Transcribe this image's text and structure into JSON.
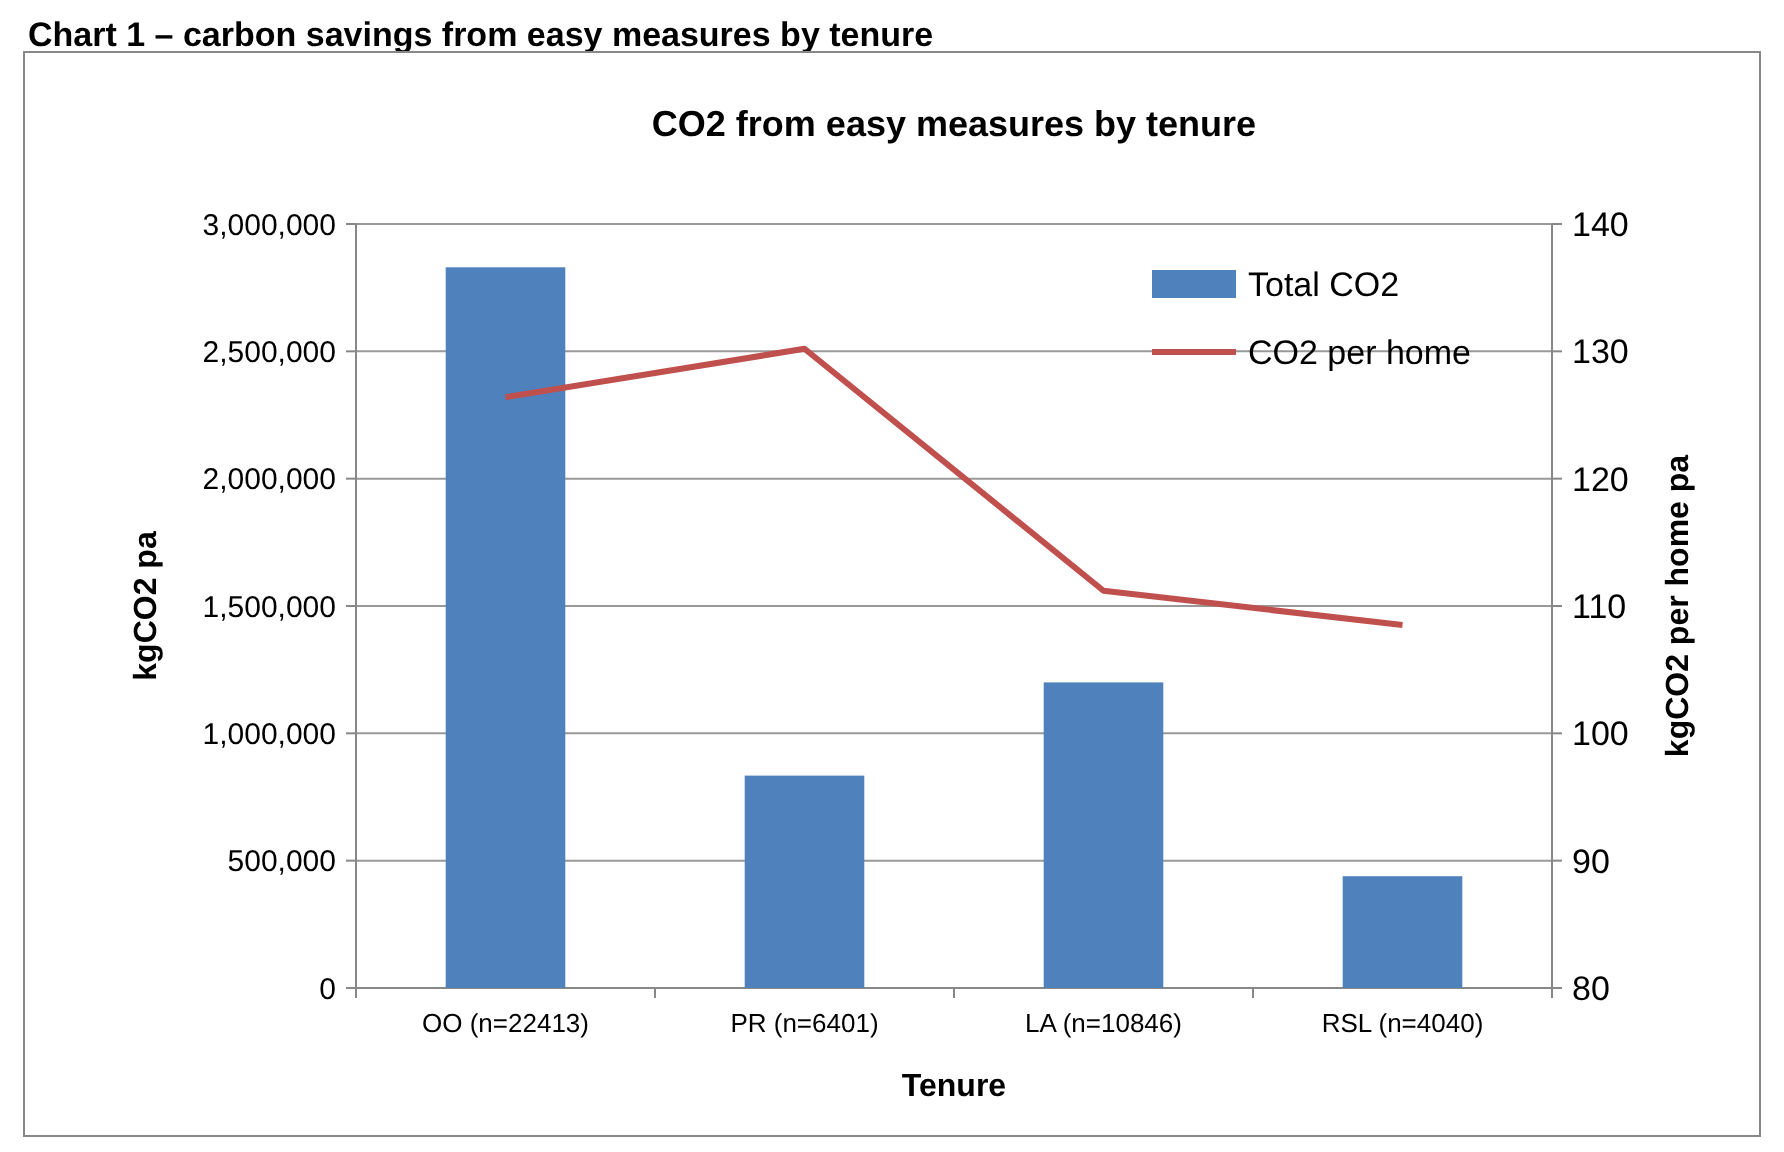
{
  "chart_data": {
    "type": "bar",
    "title": "CO2 from easy measures by tenure",
    "xlabel": "Tenure",
    "ylabel": "kgCO2 pa",
    "y2label": "kgCO2 per home pa",
    "annotations": [
      "Chart 1 – carbon savings from easy measures by tenure"
    ],
    "categories": [
      "OO (n=22413)",
      "PR (n=6401)",
      "LA (n=10846)",
      "RSL (n=4040)"
    ],
    "series": [
      {
        "name": "Total CO2",
        "color": "#4f81bd",
        "values": [
          2830000,
          834000,
          1200000,
          439000
        ]
      },
      {
        "name": "CO2 per home",
        "type": "line",
        "axis": "y2",
        "color": "#c0504d",
        "values": [
          126.4,
          130.2,
          111.2,
          108.5
        ]
      }
    ],
    "ylim": [
      0,
      3000000
    ],
    "yticks": [
      {
        "value": 0,
        "label": "0"
      },
      {
        "value": 500000,
        "label": "500,000"
      },
      {
        "value": 1000000,
        "label": "1,000,000"
      },
      {
        "value": 1500000,
        "label": "1,500,000"
      },
      {
        "value": 2000000,
        "label": "2,000,000"
      },
      {
        "value": 2500000,
        "label": "2,500,000"
      },
      {
        "value": 3000000,
        "label": "3,000,000"
      }
    ],
    "y2lim": [
      80,
      140
    ],
    "y2ticks": [
      80,
      90,
      100,
      110,
      120,
      130,
      140
    ],
    "grid": "y",
    "legend": "top right",
    "marker": "none",
    "line_style": "solid"
  }
}
